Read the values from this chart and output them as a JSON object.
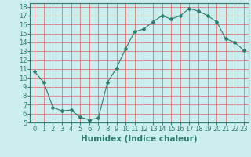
{
  "x": [
    0,
    1,
    2,
    3,
    4,
    5,
    6,
    7,
    8,
    9,
    10,
    11,
    12,
    13,
    14,
    15,
    16,
    17,
    18,
    19,
    20,
    21,
    22,
    23
  ],
  "y": [
    10.7,
    9.5,
    6.7,
    6.3,
    6.4,
    5.6,
    5.3,
    5.5,
    9.5,
    11.1,
    13.3,
    15.2,
    15.5,
    16.3,
    17.0,
    16.6,
    17.0,
    17.8,
    17.5,
    17.0,
    16.3,
    14.4,
    14.0,
    13.1
  ],
  "line_color": "#2e7d6e",
  "marker": "D",
  "marker_size": 2,
  "bg_color": "#cceeee",
  "grid_color": "#e06060",
  "xlim": [
    -0.5,
    23.5
  ],
  "ylim": [
    5,
    18.4
  ],
  "yticks": [
    5,
    6,
    7,
    8,
    9,
    10,
    11,
    12,
    13,
    14,
    15,
    16,
    17,
    18
  ],
  "xtick_labels": [
    "0",
    "1",
    "2",
    "3",
    "4",
    "5",
    "6",
    "7",
    "8",
    "9",
    "10",
    "11",
    "12",
    "13",
    "14",
    "15",
    "16",
    "17",
    "18",
    "19",
    "20",
    "21",
    "22",
    "23"
  ],
  "xlabel": "Humidex (Indice chaleur)",
  "xlabel_fontsize": 7.5,
  "tick_fontsize": 6,
  "title": ""
}
